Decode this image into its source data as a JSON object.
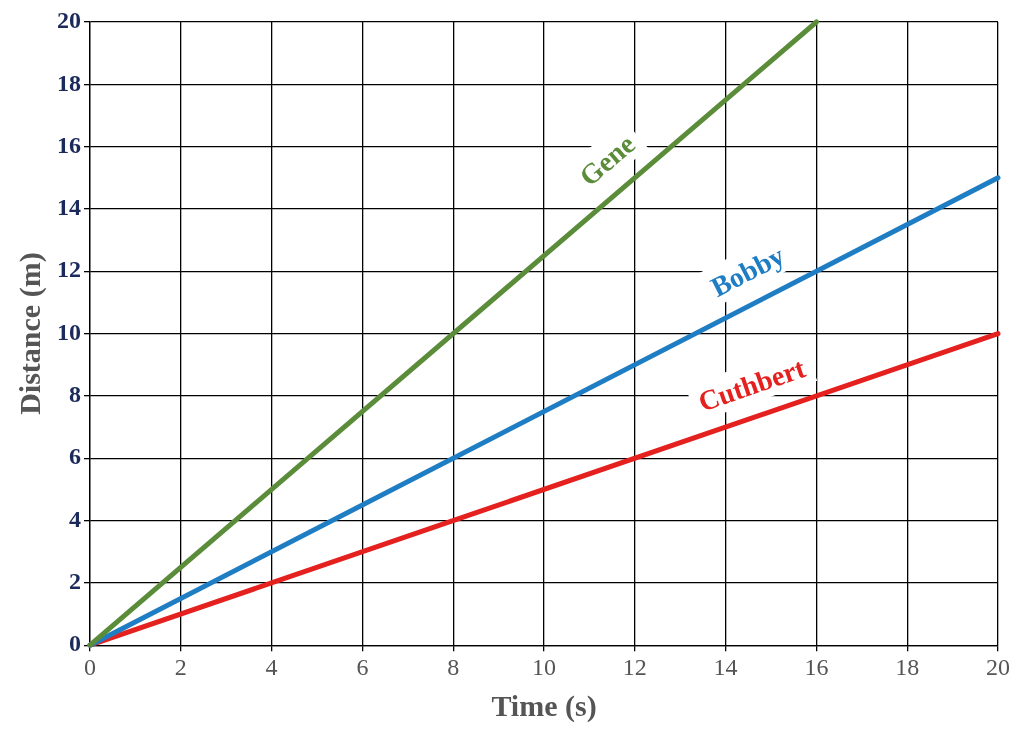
{
  "chart_data": {
    "type": "line",
    "xlabel": "Time (s)",
    "ylabel": "Distance (m)",
    "xlim": [
      0,
      20
    ],
    "xticks": [
      0,
      2,
      4,
      6,
      8,
      10,
      12,
      14,
      16,
      18,
      20
    ],
    "ylim": [
      0,
      20
    ],
    "yticks": [
      0,
      2,
      4,
      6,
      8,
      10,
      12,
      14,
      16,
      18,
      20
    ],
    "grid": true,
    "legend": false,
    "marker": "none",
    "line_style": "solid",
    "series": [
      {
        "name": "Gene",
        "color": "#5b8c3a",
        "x": [
          0,
          16
        ],
        "values": [
          0,
          20
        ]
      },
      {
        "name": "Bobby",
        "color": "#1f7dc3",
        "x": [
          0,
          20
        ],
        "values": [
          0,
          15
        ]
      },
      {
        "name": "Cuthbert",
        "color": "#e5211f",
        "x": [
          0,
          20
        ],
        "values": [
          0,
          10
        ]
      }
    ]
  }
}
